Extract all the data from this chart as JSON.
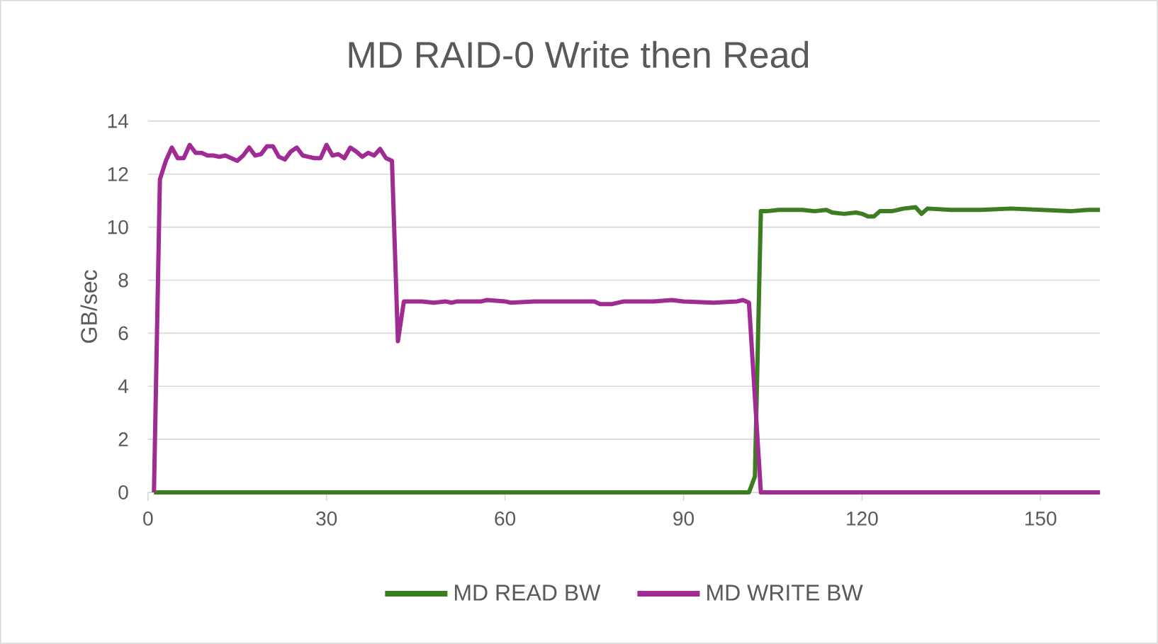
{
  "chart_data": {
    "type": "line",
    "title": "MD RAID-0 Write then Read",
    "ylabel": "GB/sec",
    "xlim": [
      0,
      160
    ],
    "xticks": [
      0,
      30,
      60,
      90,
      120,
      150
    ],
    "ylim": [
      0,
      14
    ],
    "yticks": [
      0,
      2,
      4,
      6,
      8,
      10,
      12,
      14
    ],
    "grid": "y",
    "legend": "bottom",
    "line_style": "solid",
    "marker": "none",
    "series": [
      {
        "name": "MD READ BW",
        "color": "#3c7d22",
        "x": [
          1,
          101,
          102,
          103,
          104,
          106,
          110,
          112,
          114,
          115,
          117,
          119,
          120,
          121,
          122,
          123,
          125,
          127,
          129,
          130,
          131,
          135,
          140,
          145,
          150,
          155,
          158,
          160
        ],
        "values": [
          0,
          0,
          0.6,
          10.6,
          10.6,
          10.65,
          10.65,
          10.6,
          10.65,
          10.55,
          10.5,
          10.55,
          10.5,
          10.4,
          10.4,
          10.6,
          10.6,
          10.7,
          10.75,
          10.5,
          10.7,
          10.65,
          10.65,
          10.7,
          10.65,
          10.6,
          10.65,
          10.65
        ]
      },
      {
        "name": "MD WRITE BW",
        "color": "#a02b93",
        "x": [
          1,
          2,
          3,
          4,
          5,
          6,
          7,
          8,
          9,
          10,
          11,
          12,
          13,
          14,
          15,
          16,
          17,
          18,
          19,
          20,
          21,
          22,
          23,
          24,
          25,
          26,
          27,
          28,
          29,
          30,
          31,
          32,
          33,
          34,
          35,
          36,
          37,
          38,
          39,
          40,
          41,
          42,
          43,
          46,
          48,
          50,
          51,
          52,
          56,
          57,
          60,
          61,
          65,
          70,
          75,
          76,
          78,
          80,
          85,
          88,
          90,
          95,
          99,
          100,
          101,
          103,
          160
        ],
        "values": [
          0,
          11.8,
          12.5,
          13.0,
          12.6,
          12.6,
          13.1,
          12.8,
          12.8,
          12.7,
          12.7,
          12.65,
          12.7,
          12.6,
          12.5,
          12.7,
          13.0,
          12.7,
          12.75,
          13.05,
          13.05,
          12.65,
          12.55,
          12.85,
          13.0,
          12.7,
          12.65,
          12.6,
          12.6,
          13.1,
          12.7,
          12.75,
          12.6,
          13.0,
          12.85,
          12.65,
          12.8,
          12.7,
          12.95,
          12.6,
          12.5,
          5.7,
          7.2,
          7.2,
          7.15,
          7.2,
          7.15,
          7.2,
          7.2,
          7.25,
          7.2,
          7.15,
          7.2,
          7.2,
          7.2,
          7.1,
          7.1,
          7.2,
          7.2,
          7.25,
          7.2,
          7.15,
          7.2,
          7.25,
          7.15,
          0,
          0
        ]
      }
    ]
  }
}
